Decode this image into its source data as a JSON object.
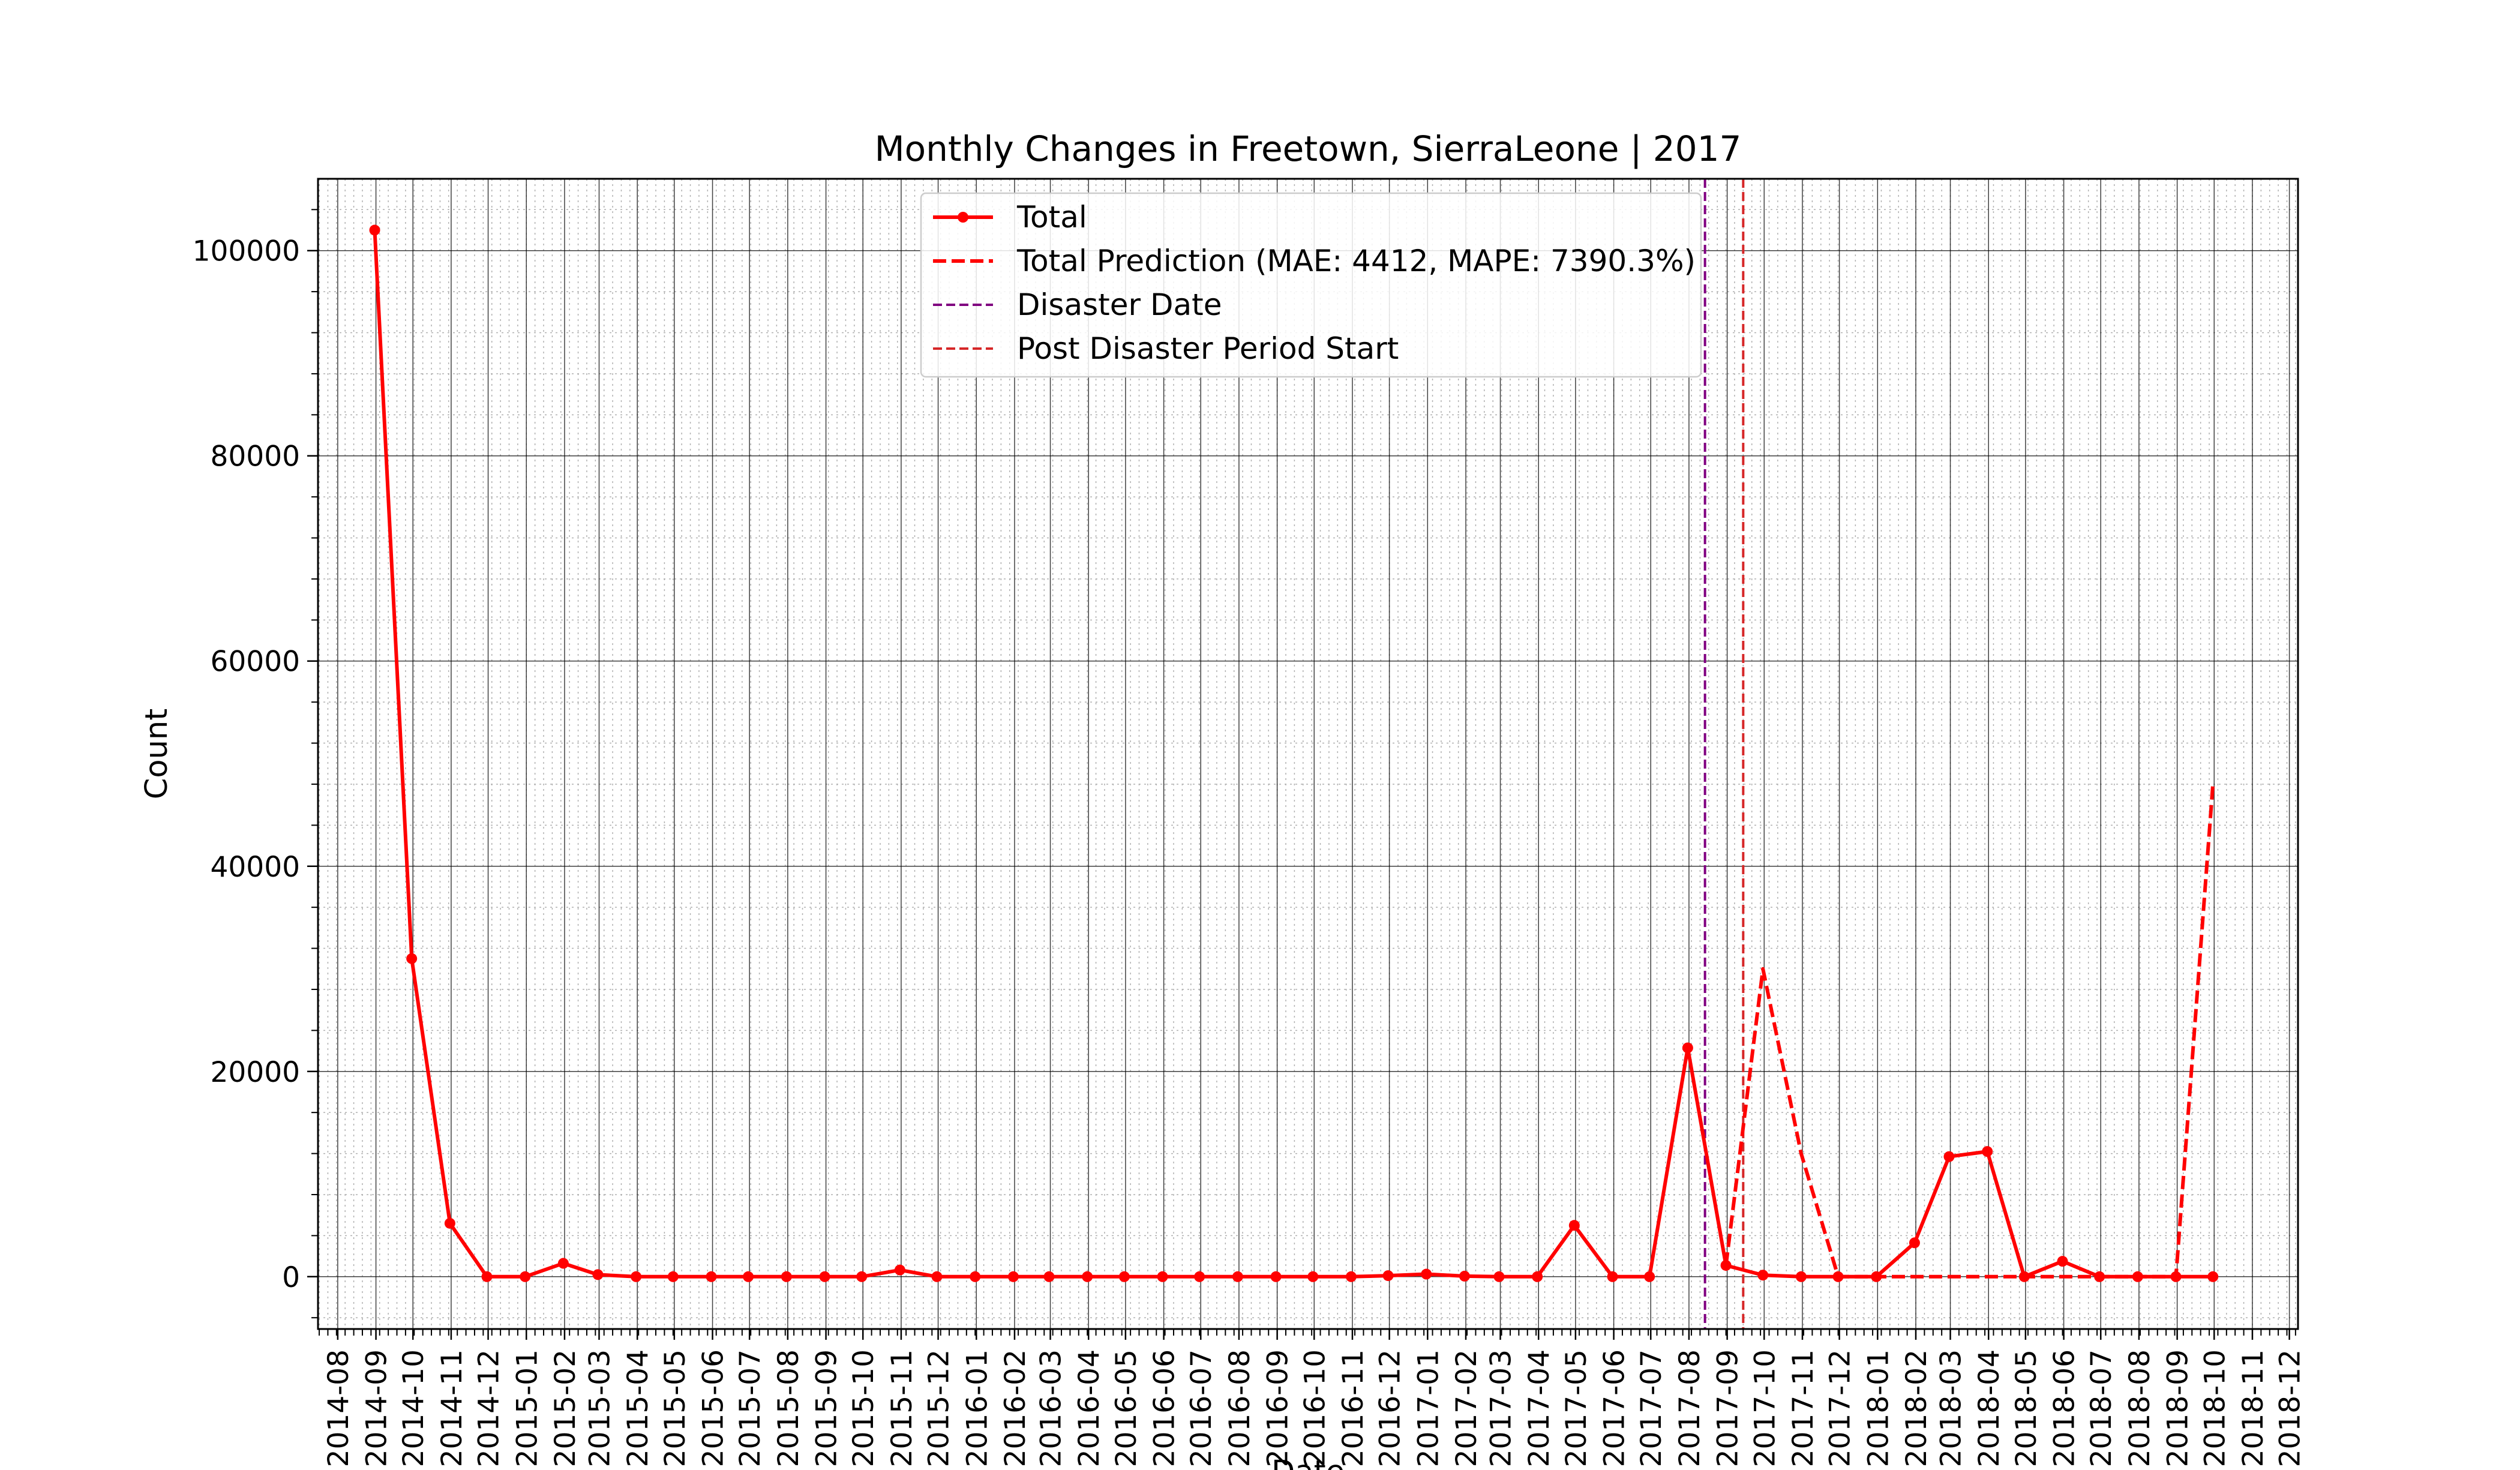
{
  "chart_data": {
    "type": "line",
    "title": "Monthly Changes in Freetown, SierraLeone | 2017",
    "xlabel": "Date",
    "ylabel": "Count",
    "ylim": [
      -5100,
      107000
    ],
    "xlim": [
      "2014-07-16",
      "2018-12-08"
    ],
    "y_ticks": [
      0,
      20000,
      40000,
      60000,
      80000,
      100000
    ],
    "x_ticks": [
      "2014-08",
      "2014-09",
      "2014-10",
      "2014-11",
      "2014-12",
      "2015-01",
      "2015-02",
      "2015-03",
      "2015-04",
      "2015-05",
      "2015-06",
      "2015-07",
      "2015-08",
      "2015-09",
      "2015-10",
      "2015-11",
      "2015-12",
      "2016-01",
      "2016-02",
      "2016-03",
      "2016-04",
      "2016-05",
      "2016-06",
      "2016-07",
      "2016-08",
      "2016-09",
      "2016-10",
      "2016-11",
      "2016-12",
      "2017-01",
      "2017-02",
      "2017-03",
      "2017-04",
      "2017-05",
      "2017-06",
      "2017-07",
      "2017-08",
      "2017-09",
      "2017-10",
      "2017-11",
      "2017-12",
      "2018-01",
      "2018-02",
      "2018-03",
      "2018-04",
      "2018-05",
      "2018-06",
      "2018-07",
      "2018-08",
      "2018-09",
      "2018-10",
      "2018-11",
      "2018-12"
    ],
    "grid": true,
    "legend_position": "top-center",
    "series": [
      {
        "name": "Total",
        "style": "solid-markers",
        "color": "#ff0000",
        "x": [
          "2014-08-31",
          "2014-09-30",
          "2014-10-31",
          "2014-11-30",
          "2014-12-31",
          "2015-01-31",
          "2015-02-28",
          "2015-03-31",
          "2015-04-30",
          "2015-05-31",
          "2015-06-30",
          "2015-07-31",
          "2015-08-31",
          "2015-09-30",
          "2015-10-31",
          "2015-11-30",
          "2015-12-31",
          "2016-01-31",
          "2016-02-29",
          "2016-03-31",
          "2016-04-30",
          "2016-05-31",
          "2016-06-30",
          "2016-07-31",
          "2016-08-31",
          "2016-09-30",
          "2016-10-31",
          "2016-11-30",
          "2016-12-31",
          "2017-01-31",
          "2017-02-28",
          "2017-03-31",
          "2017-04-30",
          "2017-05-31",
          "2017-06-30",
          "2017-07-31",
          "2017-08-31",
          "2017-09-30",
          "2017-10-31",
          "2017-11-30",
          "2017-12-31",
          "2018-01-31",
          "2018-02-28",
          "2018-03-31",
          "2018-04-30",
          "2018-05-31",
          "2018-06-30",
          "2018-07-31",
          "2018-08-31",
          "2018-09-30"
        ],
        "values": [
          102000,
          31000,
          5200,
          0,
          0,
          1300,
          200,
          0,
          0,
          0,
          0,
          0,
          0,
          0,
          650,
          0,
          0,
          0,
          0,
          0,
          0,
          0,
          0,
          0,
          0,
          0,
          0,
          100,
          250,
          50,
          0,
          0,
          5000,
          0,
          0,
          22300,
          1100,
          150,
          0,
          0,
          0,
          3300,
          11700,
          12200,
          0,
          1500,
          0,
          0,
          0,
          0
        ]
      },
      {
        "name": "Total Prediction (MAE: 4412, MAPE: 7390.3%)",
        "style": "dashed",
        "color": "#ff0000",
        "x": [
          "2017-08-31",
          "2017-09-30",
          "2017-10-31",
          "2017-11-30",
          "2017-12-31",
          "2018-01-31",
          "2018-02-28",
          "2018-03-31",
          "2018-04-30",
          "2018-05-31",
          "2018-06-30",
          "2018-07-31",
          "2018-08-31",
          "2018-09-30"
        ],
        "values": [
          1100,
          30000,
          12000,
          0,
          0,
          0,
          0,
          0,
          0,
          0,
          0,
          0,
          0,
          48000
        ]
      }
    ],
    "vlines": [
      {
        "name": "Disaster Date",
        "x": "2017-08-14",
        "color": "#800080",
        "style": "dashed"
      },
      {
        "name": "Post Disaster Period Start",
        "x": "2017-09-14",
        "color": "#d62728",
        "style": "dashed"
      }
    ]
  }
}
